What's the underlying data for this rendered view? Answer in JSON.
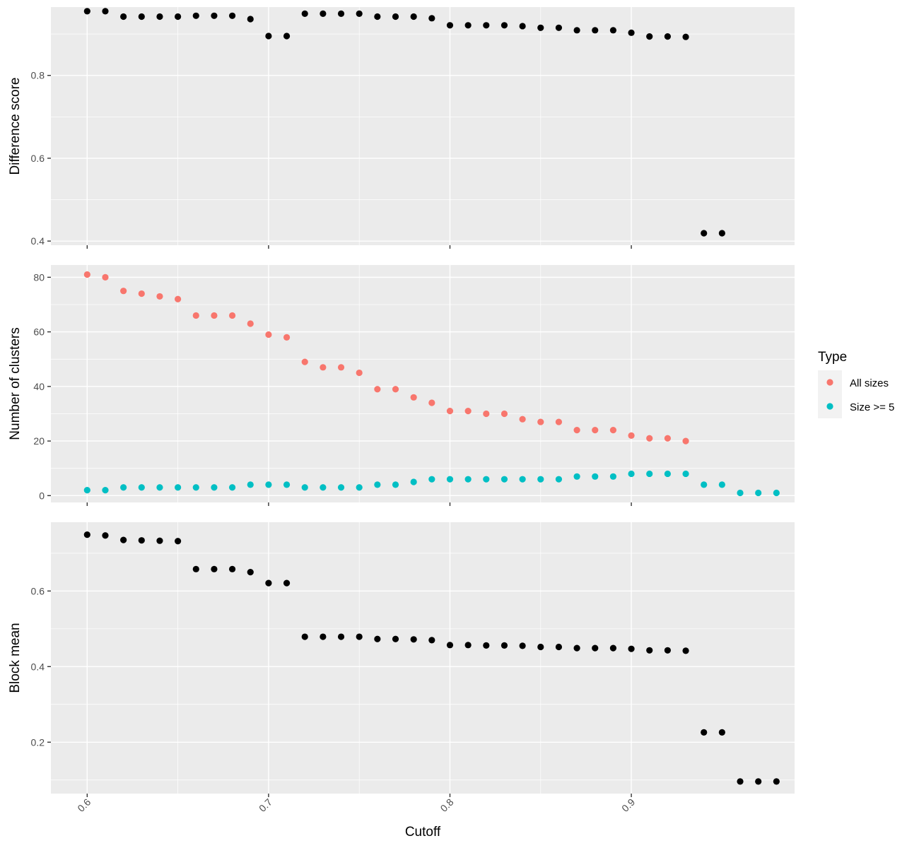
{
  "chart_data": {
    "type": "scatter",
    "xlabel": "Cutoff",
    "xlim": [
      0.58,
      0.99
    ],
    "xticks": [
      0.6,
      0.7,
      0.8,
      0.9
    ],
    "xtick_labels": [
      "0.6",
      "0.7",
      "0.8",
      "0.9"
    ],
    "legend": {
      "title": "Type",
      "position": "right",
      "entries": [
        {
          "label": "All sizes",
          "color": "#F8766D"
        },
        {
          "label": "Size >= 5",
          "color": "#00BFC4"
        }
      ]
    },
    "panels": [
      {
        "ylabel": "Difference score",
        "ylim": [
          0.39,
          0.965
        ],
        "yticks": [
          0.4,
          0.6,
          0.8
        ],
        "ytick_labels": [
          "0.4",
          "0.6",
          "0.8"
        ],
        "series": [
          {
            "color": "#000000",
            "points": [
              [
                0.6,
                0.955
              ],
              [
                0.61,
                0.955
              ],
              [
                0.62,
                0.942
              ],
              [
                0.63,
                0.942
              ],
              [
                0.64,
                0.942
              ],
              [
                0.65,
                0.942
              ],
              [
                0.66,
                0.944
              ],
              [
                0.67,
                0.944
              ],
              [
                0.68,
                0.944
              ],
              [
                0.69,
                0.936
              ],
              [
                0.7,
                0.895
              ],
              [
                0.71,
                0.895
              ],
              [
                0.72,
                0.949
              ],
              [
                0.73,
                0.949
              ],
              [
                0.74,
                0.949
              ],
              [
                0.75,
                0.949
              ],
              [
                0.76,
                0.942
              ],
              [
                0.77,
                0.942
              ],
              [
                0.78,
                0.942
              ],
              [
                0.79,
                0.938
              ],
              [
                0.8,
                0.921
              ],
              [
                0.81,
                0.921
              ],
              [
                0.82,
                0.921
              ],
              [
                0.83,
                0.921
              ],
              [
                0.84,
                0.919
              ],
              [
                0.85,
                0.915
              ],
              [
                0.86,
                0.915
              ],
              [
                0.87,
                0.909
              ],
              [
                0.88,
                0.909
              ],
              [
                0.89,
                0.909
              ],
              [
                0.9,
                0.903
              ],
              [
                0.91,
                0.894
              ],
              [
                0.92,
                0.894
              ],
              [
                0.93,
                0.893
              ],
              [
                0.94,
                0.419
              ],
              [
                0.95,
                0.419
              ]
            ]
          }
        ]
      },
      {
        "ylabel": "Number of clusters",
        "ylim": [
          -2.5,
          84.5
        ],
        "yticks": [
          0,
          20,
          40,
          60,
          80
        ],
        "ytick_labels": [
          "0",
          "20",
          "40",
          "60",
          "80"
        ],
        "series": [
          {
            "name": "All sizes",
            "color": "#F8766D",
            "points": [
              [
                0.6,
                81
              ],
              [
                0.61,
                80
              ],
              [
                0.62,
                75
              ],
              [
                0.63,
                74
              ],
              [
                0.64,
                73
              ],
              [
                0.65,
                72
              ],
              [
                0.66,
                66
              ],
              [
                0.67,
                66
              ],
              [
                0.68,
                66
              ],
              [
                0.69,
                63
              ],
              [
                0.7,
                59
              ],
              [
                0.71,
                58
              ],
              [
                0.72,
                49
              ],
              [
                0.73,
                47
              ],
              [
                0.74,
                47
              ],
              [
                0.75,
                45
              ],
              [
                0.76,
                39
              ],
              [
                0.77,
                39
              ],
              [
                0.78,
                36
              ],
              [
                0.79,
                34
              ],
              [
                0.8,
                31
              ],
              [
                0.81,
                31
              ],
              [
                0.82,
                30
              ],
              [
                0.83,
                30
              ],
              [
                0.84,
                28
              ],
              [
                0.85,
                27
              ],
              [
                0.86,
                27
              ],
              [
                0.87,
                24
              ],
              [
                0.88,
                24
              ],
              [
                0.89,
                24
              ],
              [
                0.9,
                22
              ],
              [
                0.91,
                21
              ],
              [
                0.92,
                21
              ],
              [
                0.93,
                20
              ]
            ]
          },
          {
            "name": "Size >= 5",
            "color": "#00BFC4",
            "points": [
              [
                0.6,
                2
              ],
              [
                0.61,
                2
              ],
              [
                0.62,
                3
              ],
              [
                0.63,
                3
              ],
              [
                0.64,
                3
              ],
              [
                0.65,
                3
              ],
              [
                0.66,
                3
              ],
              [
                0.67,
                3
              ],
              [
                0.68,
                3
              ],
              [
                0.69,
                4
              ],
              [
                0.7,
                4
              ],
              [
                0.71,
                4
              ],
              [
                0.72,
                3
              ],
              [
                0.73,
                3
              ],
              [
                0.74,
                3
              ],
              [
                0.75,
                3
              ],
              [
                0.76,
                4
              ],
              [
                0.77,
                4
              ],
              [
                0.78,
                5
              ],
              [
                0.79,
                6
              ],
              [
                0.8,
                6
              ],
              [
                0.81,
                6
              ],
              [
                0.82,
                6
              ],
              [
                0.83,
                6
              ],
              [
                0.84,
                6
              ],
              [
                0.85,
                6
              ],
              [
                0.86,
                6
              ],
              [
                0.87,
                7
              ],
              [
                0.88,
                7
              ],
              [
                0.89,
                7
              ],
              [
                0.9,
                8
              ],
              [
                0.91,
                8
              ],
              [
                0.92,
                8
              ],
              [
                0.93,
                8
              ],
              [
                0.94,
                4
              ],
              [
                0.95,
                4
              ],
              [
                0.96,
                1
              ],
              [
                0.97,
                1
              ],
              [
                0.98,
                1
              ]
            ]
          }
        ]
      },
      {
        "ylabel": "Block mean",
        "ylim": [
          0.064,
          0.782
        ],
        "yticks": [
          0.2,
          0.4,
          0.6
        ],
        "ytick_labels": [
          "0.2",
          "0.4",
          "0.6"
        ],
        "series": [
          {
            "color": "#000000",
            "points": [
              [
                0.6,
                0.749
              ],
              [
                0.61,
                0.747
              ],
              [
                0.62,
                0.735
              ],
              [
                0.63,
                0.734
              ],
              [
                0.64,
                0.733
              ],
              [
                0.65,
                0.732
              ],
              [
                0.66,
                0.658
              ],
              [
                0.67,
                0.658
              ],
              [
                0.68,
                0.658
              ],
              [
                0.69,
                0.65
              ],
              [
                0.7,
                0.621
              ],
              [
                0.71,
                0.621
              ],
              [
                0.72,
                0.479
              ],
              [
                0.73,
                0.479
              ],
              [
                0.74,
                0.479
              ],
              [
                0.75,
                0.479
              ],
              [
                0.76,
                0.473
              ],
              [
                0.77,
                0.473
              ],
              [
                0.78,
                0.472
              ],
              [
                0.79,
                0.47
              ],
              [
                0.8,
                0.457
              ],
              [
                0.81,
                0.457
              ],
              [
                0.82,
                0.456
              ],
              [
                0.83,
                0.456
              ],
              [
                0.84,
                0.455
              ],
              [
                0.85,
                0.452
              ],
              [
                0.86,
                0.452
              ],
              [
                0.87,
                0.449
              ],
              [
                0.88,
                0.449
              ],
              [
                0.89,
                0.449
              ],
              [
                0.9,
                0.447
              ],
              [
                0.91,
                0.443
              ],
              [
                0.92,
                0.443
              ],
              [
                0.93,
                0.442
              ],
              [
                0.94,
                0.226
              ],
              [
                0.95,
                0.226
              ],
              [
                0.96,
                0.096
              ],
              [
                0.97,
                0.096
              ],
              [
                0.98,
                0.096
              ]
            ]
          }
        ]
      }
    ]
  }
}
